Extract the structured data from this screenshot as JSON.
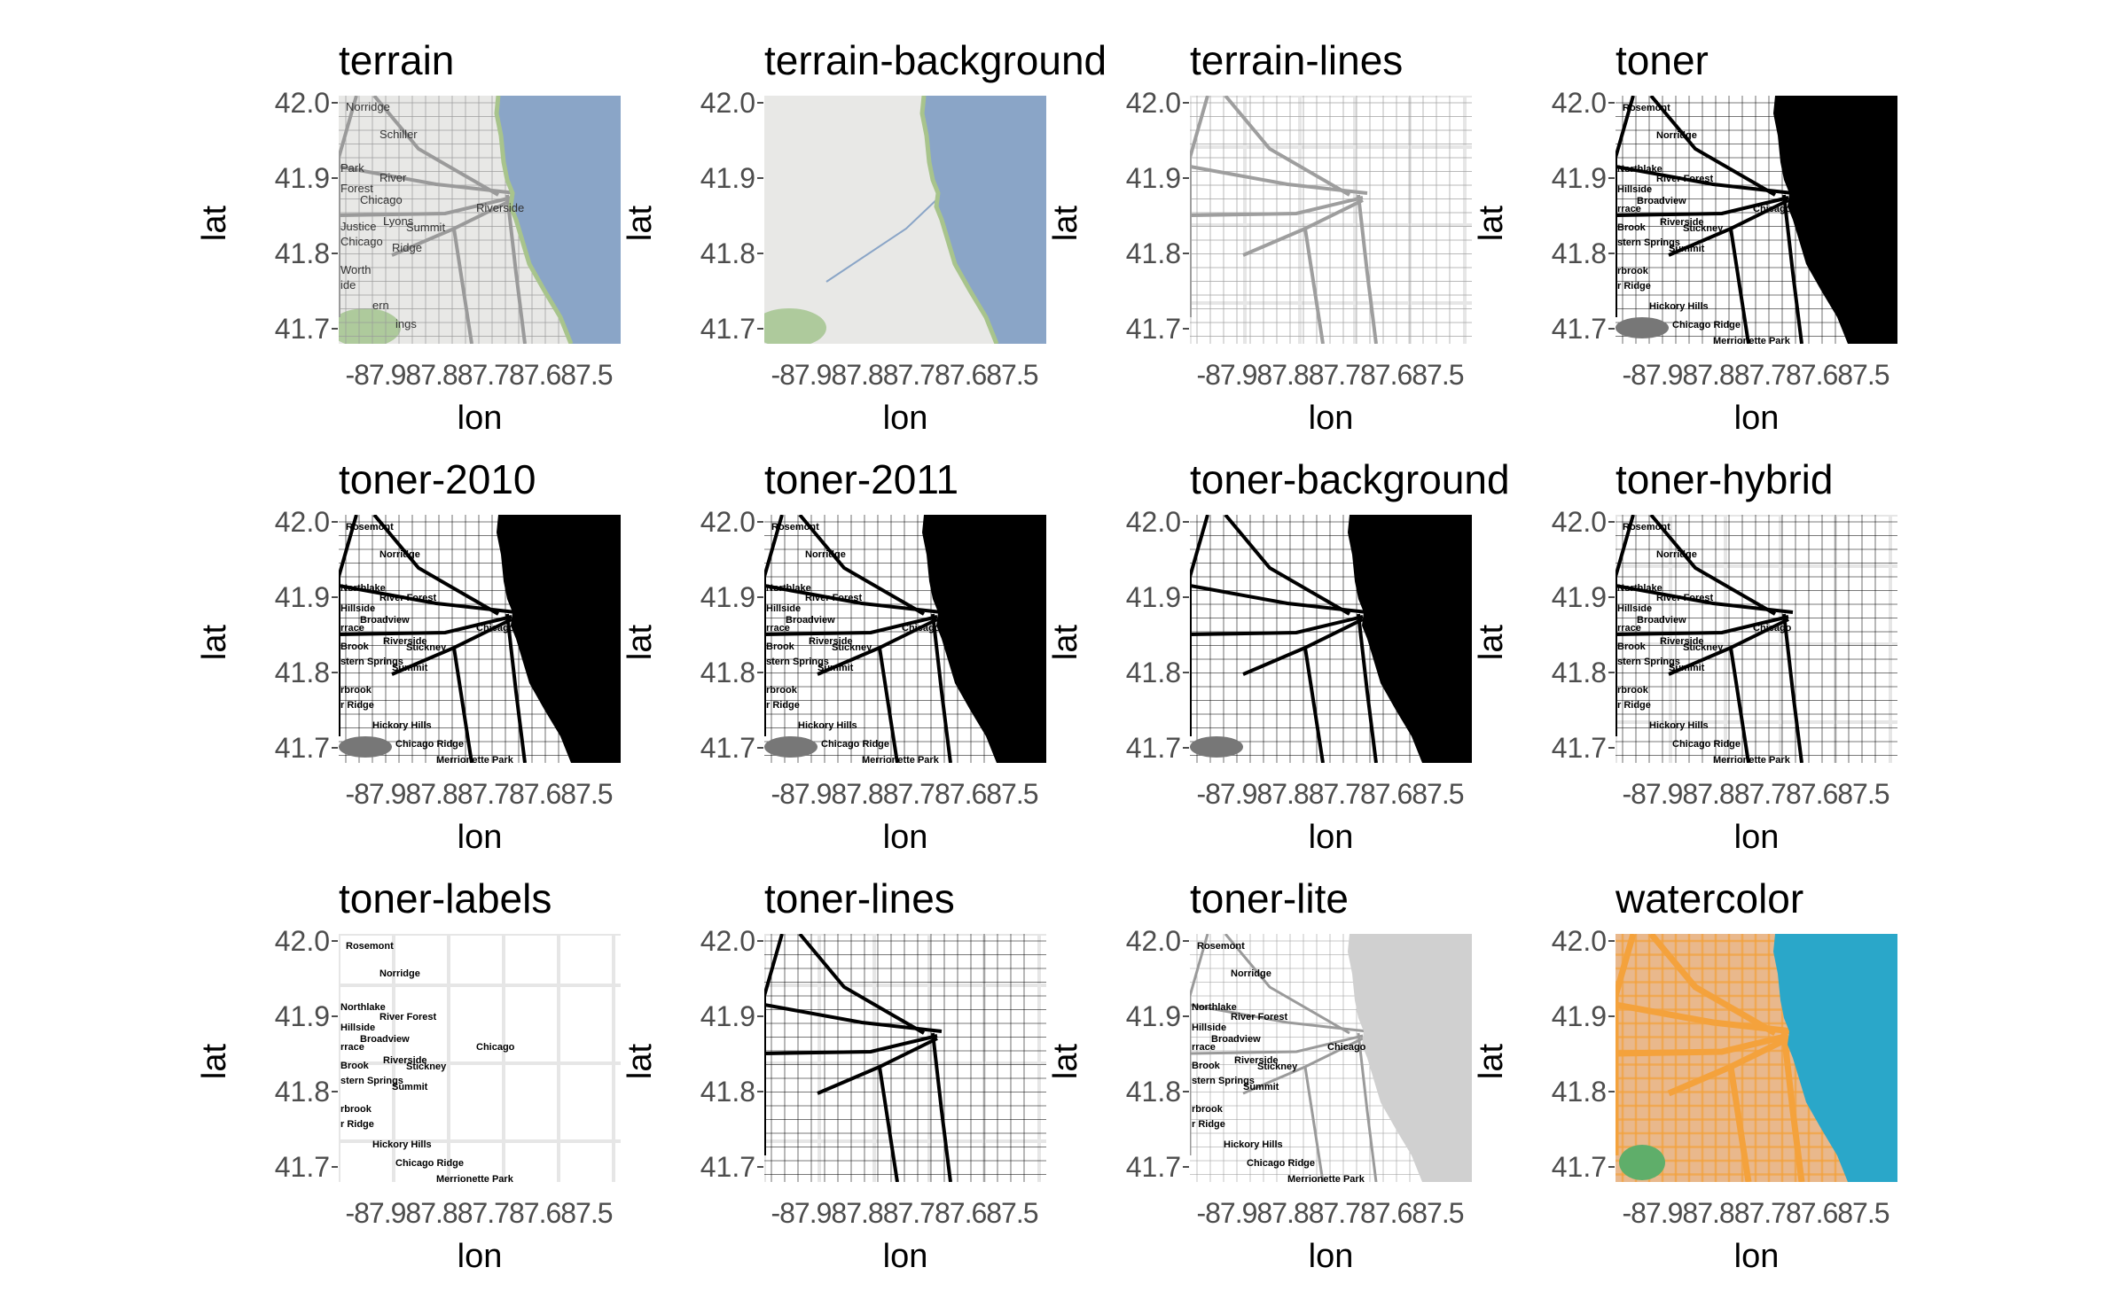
{
  "axes": {
    "xlabel": "lon",
    "ylabel": "lat",
    "xtick_text": "-87.987.887.787.687.5",
    "yticks": [
      "42.0",
      "41.9",
      "41.8",
      "41.7"
    ],
    "ytick_values": [
      42.0,
      41.9,
      41.8,
      41.7
    ],
    "lat_range": [
      41.68,
      42.01
    ],
    "lon_range": [
      -87.94,
      -87.52
    ]
  },
  "colors": {
    "water_terrain": "#8aa5c7",
    "land_terrain": "#e8e8e6",
    "green": "#9fc28a",
    "water_toner": "#000000",
    "water_lite": "#d0d0d0",
    "water_watercolor": "#2aa7c9",
    "land_watercolor": "#e9b88c",
    "road_watercolor": "#f4a23c",
    "grid": "#e6e6e6"
  },
  "panels": [
    {
      "title": "terrain",
      "style": "terrain",
      "places": [
        "Norridge",
        "Schiller",
        "Park",
        "River",
        "Forest",
        "Chicago",
        "Riverside",
        "Lyons",
        "Summit",
        "Justice",
        "Chicago",
        "Ridge",
        "Worth",
        "ide",
        "ern",
        "ings"
      ]
    },
    {
      "title": "terrain-background",
      "style": "terrain-bg",
      "places": []
    },
    {
      "title": "terrain-lines",
      "style": "lines-gray",
      "places": []
    },
    {
      "title": "toner",
      "style": "toner",
      "places": [
        "Rosemont",
        "Norridge",
        "Northlake",
        "River Forest",
        "Hillside",
        "Broadview",
        "Chicago",
        "Riverside",
        "Stickney",
        "Brook",
        "stern Springs",
        "Summit",
        "rbrook",
        "r Ridge",
        "Hickory Hills",
        "Chicago Ridge",
        "Merrionette Park",
        "rrace"
      ]
    },
    {
      "title": "toner-2010",
      "style": "toner",
      "places": [
        "Rosemont",
        "Norridge",
        "Northlake",
        "River Forest",
        "Hillside",
        "Broadview",
        "Chicago",
        "Riverside",
        "Stickney",
        "Brook",
        "stern Springs",
        "Summit",
        "rbrook",
        "r Ridge",
        "Hickory Hills",
        "Chicago Ridge",
        "Merrionette Park",
        "rrace"
      ]
    },
    {
      "title": "toner-2011",
      "style": "toner",
      "places": [
        "Rosemont",
        "Norridge",
        "Northlake",
        "River Forest",
        "Hillside",
        "Broadview",
        "Chicago",
        "Riverside",
        "Stickney",
        "Brook",
        "stern Springs",
        "Summit",
        "rbrook",
        "r Ridge",
        "Hickory Hills",
        "Chicago Ridge",
        "Merrionette Park",
        "rrace"
      ]
    },
    {
      "title": "toner-background",
      "style": "toner-bg",
      "places": []
    },
    {
      "title": "toner-hybrid",
      "style": "toner-hybrid",
      "places": [
        "Rosemont",
        "Norridge",
        "Northlake",
        "River Forest",
        "Hillside",
        "Broadview",
        "Chicago",
        "Riverside",
        "Stickney",
        "Brook",
        "stern Springs",
        "Summit",
        "rbrook",
        "r Ridge",
        "Hickory Hills",
        "Chicago Ridge",
        "Merrionette Park",
        "rrace"
      ]
    },
    {
      "title": "toner-labels",
      "style": "toner-labels",
      "places": [
        "Rosemont",
        "Norridge",
        "Northlake",
        "River Forest",
        "Hillside",
        "Broadview",
        "Chicago",
        "Riverside",
        "Stickney",
        "Brook",
        "stern Springs",
        "Summit",
        "rbrook",
        "r Ridge",
        "Hickory Hills",
        "Chicago Ridge",
        "Merrionette Park",
        "rrace"
      ]
    },
    {
      "title": "toner-lines",
      "style": "toner-lines",
      "places": []
    },
    {
      "title": "toner-lite",
      "style": "toner-lite",
      "places": [
        "Rosemont",
        "Norridge",
        "Northlake",
        "River Forest",
        "Hillside",
        "Broadview",
        "Chicago",
        "Riverside",
        "Stickney",
        "Brook",
        "stern Springs",
        "Summit",
        "rbrook",
        "r Ridge",
        "Hickory Hills",
        "Chicago Ridge",
        "Merrionette Park",
        "rrace"
      ]
    },
    {
      "title": "watercolor",
      "style": "watercolor",
      "places": []
    }
  ]
}
